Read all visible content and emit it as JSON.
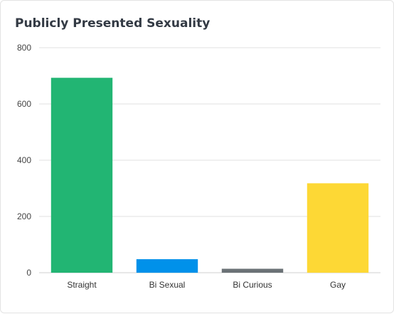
{
  "chart_data": {
    "type": "bar",
    "title": "Publicly Presented Sexuality",
    "categories": [
      "Straight",
      "Bi Sexual",
      "Bi Curious",
      "Gay"
    ],
    "values": [
      693,
      48,
      14,
      318
    ],
    "colors": [
      "#22b573",
      "#0091ea",
      "#6b7276",
      "#fdd835"
    ],
    "ylim": [
      0,
      800
    ],
    "yticks": [
      0,
      200,
      400,
      600,
      800
    ],
    "grid": true,
    "legend": "none"
  }
}
